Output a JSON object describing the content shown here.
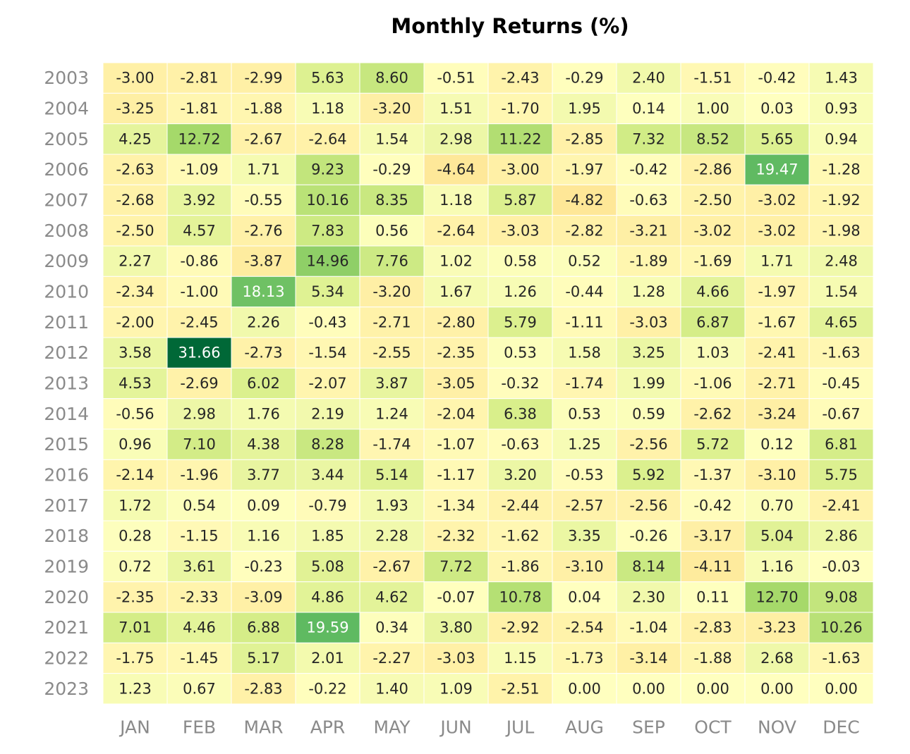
{
  "chart_data": {
    "type": "heatmap",
    "title": "Monthly Returns (%)",
    "xlabel": "",
    "ylabel": "",
    "x_categories": [
      "JAN",
      "FEB",
      "MAR",
      "APR",
      "MAY",
      "JUN",
      "JUL",
      "AUG",
      "SEP",
      "OCT",
      "NOV",
      "DEC"
    ],
    "y_categories": [
      "2003",
      "2004",
      "2005",
      "2006",
      "2007",
      "2008",
      "2009",
      "2010",
      "2011",
      "2012",
      "2013",
      "2014",
      "2015",
      "2016",
      "2017",
      "2018",
      "2019",
      "2020",
      "2021",
      "2022",
      "2023"
    ],
    "values": [
      [
        -3.0,
        -2.81,
        -2.99,
        5.63,
        8.6,
        -0.51,
        -2.43,
        -0.29,
        2.4,
        -1.51,
        -0.42,
        1.43
      ],
      [
        -3.25,
        -1.81,
        -1.88,
        1.18,
        -3.2,
        1.51,
        -1.7,
        1.95,
        0.14,
        1.0,
        0.03,
        0.93
      ],
      [
        4.25,
        12.72,
        -2.67,
        -2.64,
        1.54,
        2.98,
        11.22,
        -2.85,
        7.32,
        8.52,
        5.65,
        0.94
      ],
      [
        -2.63,
        -1.09,
        1.71,
        9.23,
        -0.29,
        -4.64,
        -3.0,
        -1.97,
        -0.42,
        -2.86,
        19.47,
        -1.28
      ],
      [
        -2.68,
        3.92,
        -0.55,
        10.16,
        8.35,
        1.18,
        5.87,
        -4.82,
        -0.63,
        -2.5,
        -3.02,
        -1.92
      ],
      [
        -2.5,
        4.57,
        -2.76,
        7.83,
        0.56,
        -2.64,
        -3.03,
        -2.82,
        -3.21,
        -3.02,
        -3.02,
        -1.98
      ],
      [
        2.27,
        -0.86,
        -3.87,
        14.96,
        7.76,
        1.02,
        0.58,
        0.52,
        -1.89,
        -1.69,
        1.71,
        2.48
      ],
      [
        -2.34,
        -1.0,
        18.13,
        5.34,
        -3.2,
        1.67,
        1.26,
        -0.44,
        1.28,
        4.66,
        -1.97,
        1.54
      ],
      [
        -2.0,
        -2.45,
        2.26,
        -0.43,
        -2.71,
        -2.8,
        5.79,
        -1.11,
        -3.03,
        6.87,
        -1.67,
        4.65
      ],
      [
        3.58,
        31.66,
        -2.73,
        -1.54,
        -2.55,
        -2.35,
        0.53,
        1.58,
        3.25,
        1.03,
        -2.41,
        -1.63
      ],
      [
        4.53,
        -2.69,
        6.02,
        -2.07,
        3.87,
        -3.05,
        -0.32,
        -1.74,
        1.99,
        -1.06,
        -2.71,
        -0.45
      ],
      [
        -0.56,
        2.98,
        1.76,
        2.19,
        1.24,
        -2.04,
        6.38,
        0.53,
        0.59,
        -2.62,
        -3.24,
        -0.67
      ],
      [
        0.96,
        7.1,
        4.38,
        8.28,
        -1.74,
        -1.07,
        -0.63,
        1.25,
        -2.56,
        5.72,
        0.12,
        6.81
      ],
      [
        -2.14,
        -1.96,
        3.77,
        3.44,
        5.14,
        -1.17,
        3.2,
        -0.53,
        5.92,
        -1.37,
        -3.1,
        5.75
      ],
      [
        1.72,
        0.54,
        0.09,
        -0.79,
        1.93,
        -1.34,
        -2.44,
        -2.57,
        -2.56,
        -0.42,
        0.7,
        -2.41
      ],
      [
        0.28,
        -1.15,
        1.16,
        1.85,
        2.28,
        -2.32,
        -1.62,
        3.35,
        -0.26,
        -3.17,
        5.04,
        2.86
      ],
      [
        0.72,
        3.61,
        -0.23,
        5.08,
        -2.67,
        7.72,
        -1.86,
        -3.1,
        8.14,
        -4.11,
        1.16,
        -0.03
      ],
      [
        -2.35,
        -2.33,
        -3.09,
        4.86,
        4.62,
        -0.07,
        10.78,
        0.04,
        2.3,
        0.11,
        12.7,
        9.08
      ],
      [
        7.01,
        4.46,
        6.88,
        19.59,
        0.34,
        3.8,
        -2.92,
        -2.54,
        -1.04,
        -2.83,
        -3.23,
        10.26
      ],
      [
        -1.75,
        -1.45,
        5.17,
        2.01,
        -2.27,
        -3.03,
        1.15,
        -1.73,
        -3.14,
        -1.88,
        2.68,
        -1.63
      ],
      [
        1.23,
        0.67,
        -2.83,
        -0.22,
        1.4,
        1.09,
        -2.51,
        0.0,
        0.0,
        0.0,
        0.0,
        0.0
      ]
    ],
    "colormap": "RdYlGn",
    "grid": true,
    "legend": "none"
  }
}
